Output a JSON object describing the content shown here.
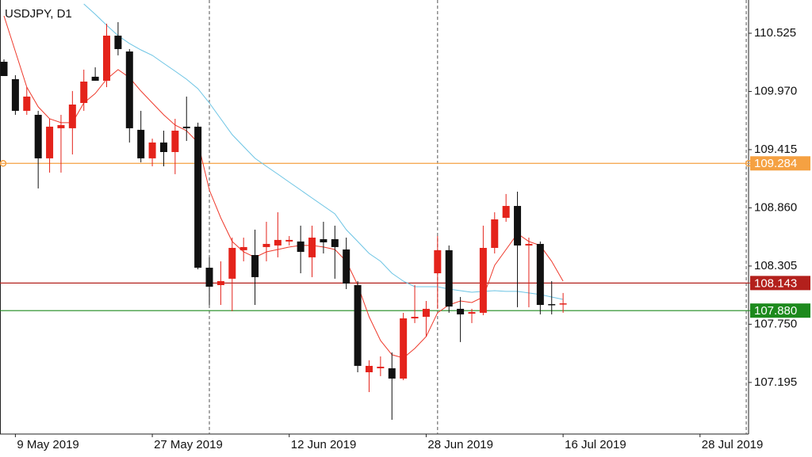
{
  "chart_data": {
    "type": "candlestick",
    "title": "USDJPY, D1",
    "bull_color": "#e4231b",
    "bear_color": "#111111",
    "categories": [
      null,
      "9 May 2019",
      null,
      null,
      null,
      null,
      null,
      null,
      null,
      null,
      null,
      null,
      null,
      "27 May 2019",
      null,
      null,
      null,
      null,
      null,
      null,
      null,
      null,
      null,
      null,
      null,
      "12 Jun 2019",
      null,
      null,
      null,
      null,
      null,
      null,
      null,
      null,
      null,
      null,
      null,
      "28 Jun 2019",
      null,
      null,
      null,
      null,
      null,
      null,
      null,
      null,
      null,
      null,
      null,
      "16 Jul 2019",
      null,
      null,
      null,
      null,
      null,
      null,
      null,
      null,
      null,
      null,
      null,
      "28 Jul 2019",
      null,
      null,
      null
    ],
    "open": [
      110.253,
      110.087,
      109.785,
      109.747,
      109.332,
      109.619,
      109.619,
      109.86,
      110.11,
      110.072,
      110.502,
      110.351,
      109.604,
      109.332,
      109.483,
      109.392,
      109.634,
      109.634,
      108.289,
      108.123,
      108.184,
      108.456,
      108.41,
      108.486,
      108.501,
      108.539,
      108.539,
      108.388,
      108.561,
      108.561,
      108.463,
      108.123,
      107.292,
      107.33,
      107.33,
      107.232,
      107.806,
      107.821,
      108.236,
      108.456,
      107.897,
      107.851,
      107.859,
      108.478,
      108.765,
      108.878,
      108.501,
      108.516,
      107.942,
      107.942,
      null,
      null,
      null,
      null,
      null,
      null,
      null,
      null,
      null,
      null,
      null,
      null,
      null,
      null,
      null
    ],
    "high": [
      110.276,
      110.125,
      110.011,
      109.785,
      109.709,
      109.747,
      109.974,
      110.178,
      110.2,
      110.616,
      110.631,
      110.374,
      109.785,
      109.52,
      109.596,
      109.709,
      109.921,
      109.672,
      108.388,
      108.35,
      108.576,
      108.576,
      108.652,
      108.727,
      108.818,
      108.591,
      108.69,
      108.69,
      108.727,
      108.69,
      108.576,
      108.161,
      107.406,
      107.443,
      107.481,
      107.859,
      108.123,
      107.972,
      108.591,
      108.501,
      108.01,
      107.897,
      108.69,
      108.818,
      108.992,
      109.014,
      108.576,
      108.539,
      108.161,
      108.048,
      null,
      null,
      null,
      null,
      null,
      null,
      null,
      null,
      null,
      null,
      null,
      null,
      null,
      null,
      null
    ],
    "low": [
      110.117,
      109.747,
      109.747,
      109.045,
      109.196,
      109.196,
      109.369,
      109.785,
      110.072,
      110.011,
      110.314,
      109.483,
      109.294,
      109.256,
      109.256,
      109.181,
      109.498,
      108.274,
      107.934,
      107.934,
      107.874,
      108.35,
      107.934,
      108.35,
      108.388,
      108.501,
      108.236,
      108.199,
      108.425,
      108.184,
      108.085,
      107.292,
      107.103,
      107.255,
      106.839,
      107.217,
      107.761,
      107.632,
      107.897,
      107.859,
      107.58,
      107.761,
      107.836,
      108.425,
      108.727,
      107.912,
      107.912,
      107.844,
      107.844,
      107.859,
      null,
      null,
      null,
      null,
      null,
      null,
      null,
      null,
      null,
      null,
      null,
      null,
      null,
      null,
      null
    ],
    "close": [
      110.117,
      109.785,
      109.921,
      109.332,
      109.634,
      109.649,
      109.845,
      110.064,
      110.072,
      110.502,
      110.374,
      109.619,
      109.332,
      109.483,
      109.392,
      109.596,
      109.619,
      108.289,
      108.108,
      108.161,
      108.478,
      108.486,
      108.199,
      108.516,
      108.554,
      108.554,
      108.44,
      108.576,
      108.531,
      108.486,
      108.138,
      107.353,
      107.353,
      107.345,
      107.232,
      107.806,
      107.821,
      107.897,
      108.456,
      107.919,
      107.844,
      107.866,
      108.478,
      108.75,
      108.878,
      108.501,
      108.516,
      107.934,
      107.942,
      107.949,
      null,
      null,
      null,
      null,
      null,
      null,
      null,
      null,
      null,
      null,
      null,
      null,
      null,
      null,
      null
    ],
    "indicators": [
      {
        "color": "#ee3a2c",
        "values": [
          110.691,
          110.351,
          110.011,
          109.823,
          109.709,
          109.672,
          109.672,
          109.86,
          109.951,
          110.087,
          110.178,
          110.102,
          109.974,
          109.86,
          109.747,
          109.649,
          109.596,
          109.483,
          109.03,
          108.765,
          108.539,
          108.44,
          108.388,
          108.44,
          108.463,
          108.486,
          108.501,
          108.501,
          108.486,
          108.463,
          108.35,
          108.123,
          107.821,
          107.594,
          107.459,
          107.428,
          107.519,
          107.632,
          107.859,
          107.934,
          107.972,
          107.957,
          108.01,
          108.312,
          108.463,
          108.614,
          108.539,
          108.501,
          108.35,
          108.161,
          null,
          null,
          null,
          null,
          null,
          null,
          null,
          null,
          null,
          null,
          null,
          null,
          null,
          null,
          null
        ]
      },
      {
        "color": "#6cc4e4",
        "values": [
          null,
          null,
          null,
          null,
          null,
          null,
          null,
          110.804,
          110.706,
          110.601,
          110.502,
          110.427,
          110.366,
          110.314,
          110.238,
          110.163,
          110.087,
          109.996,
          109.86,
          109.709,
          109.558,
          109.445,
          109.332,
          109.256,
          109.181,
          109.105,
          109.03,
          108.954,
          108.878,
          108.803,
          108.652,
          108.539,
          108.425,
          108.35,
          108.236,
          108.161,
          108.108,
          108.108,
          108.108,
          108.085,
          108.07,
          108.055,
          108.063,
          108.07,
          108.063,
          108.063,
          108.048,
          108.033,
          108.01,
          107.987,
          null,
          null,
          null,
          null,
          null,
          null,
          null,
          null,
          null,
          null,
          null,
          null,
          null,
          null,
          null
        ]
      }
    ],
    "hlines": [
      {
        "value": 109.284,
        "color": "#f5a142"
      },
      {
        "value": 108.143,
        "color": "#b3201c"
      },
      {
        "value": 107.88,
        "label": "107.880",
        "color": "#1d8a1d"
      }
    ],
    "ylim": [
      106.703,
      110.842
    ],
    "yticks": [
      110.525,
      {
        "value": 109.97,
        "label": "109.970"
      },
      109.415,
      {
        "value": 108.86,
        "label": "108.860"
      },
      108.305,
      {
        "value": 107.75,
        "label": "107.750"
      },
      107.195
    ]
  }
}
